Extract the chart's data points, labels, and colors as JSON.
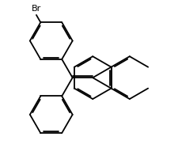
{
  "background": "#ffffff",
  "line_color": "#000000",
  "line_width": 1.3,
  "label_Br": "Br",
  "label_fontsize": 8,
  "figsize": [
    2.25,
    1.87
  ],
  "dpi": 100
}
